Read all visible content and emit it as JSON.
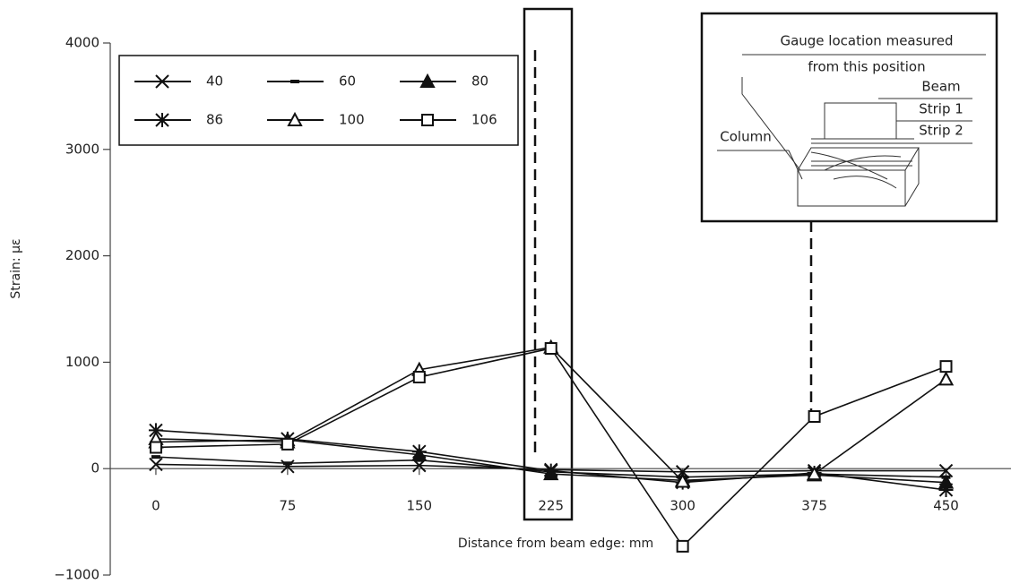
{
  "chart_data": {
    "type": "line",
    "y_label": "Strain: με",
    "x_label": "Distance from beam edge: mm",
    "x": [
      0,
      75,
      150,
      225,
      300,
      375,
      450
    ],
    "xlim": [
      -26,
      487
    ],
    "xticks": [
      0,
      75,
      150,
      225,
      300,
      375,
      450
    ],
    "ylim": [
      -1000,
      4000
    ],
    "yticks": [
      {
        "value": -1000,
        "label": "−1000"
      },
      0,
      1000,
      2000,
      3000,
      4000
    ],
    "series": [
      {
        "name": "40",
        "color": "#111",
        "marker": "x",
        "values": [
          40,
          20,
          30,
          -10,
          -30,
          -20,
          -20
        ]
      },
      {
        "name": "60",
        "color": "#111",
        "marker": "dash",
        "values": [
          110,
          50,
          80,
          -30,
          -80,
          -50,
          -80
        ]
      },
      {
        "name": "80",
        "color": "#111",
        "marker": "triangle-filled",
        "values": [
          250,
          270,
          130,
          -50,
          -110,
          -60,
          -130
        ]
      },
      {
        "name": "86",
        "color": "#111",
        "marker": "asterisk",
        "values": [
          360,
          280,
          160,
          -20,
          -130,
          -40,
          -200
        ]
      },
      {
        "name": "100",
        "color": "#111",
        "marker": "triangle",
        "values": [
          280,
          250,
          930,
          1140,
          -120,
          -50,
          840
        ]
      },
      {
        "name": "106",
        "color": "#111",
        "marker": "square",
        "values": [
          200,
          230,
          860,
          1130,
          -730,
          490,
          960
        ]
      }
    ],
    "inset": {
      "caption_1": "Gauge location measured",
      "caption_2": "from this position",
      "beam": "Beam",
      "strip_1": "Strip 1",
      "strip_2": "Strip 2",
      "column": "Column"
    }
  }
}
